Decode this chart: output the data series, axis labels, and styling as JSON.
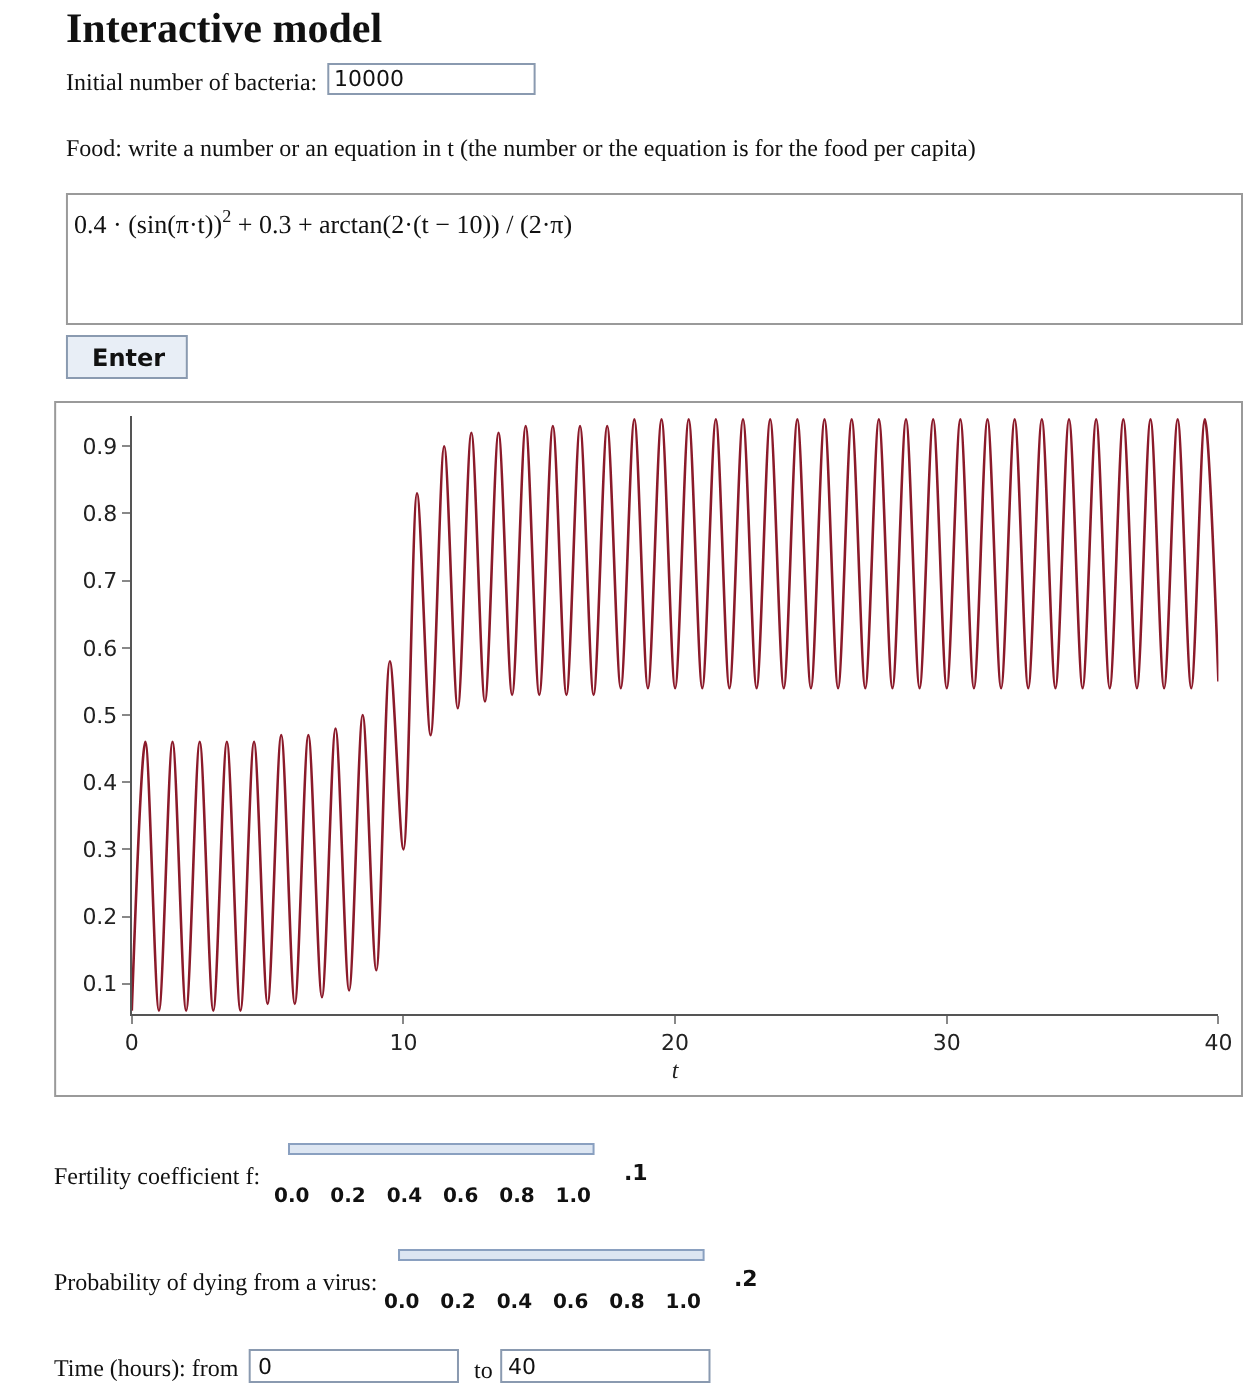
{
  "chart_data": {
    "type": "line",
    "title": "Interactive model",
    "xlabel": "t",
    "x": [
      0,
      0.5,
      1,
      1.5,
      2,
      2.5,
      3,
      3.5,
      4,
      4.5,
      5,
      5.5,
      6,
      6.5,
      7,
      7.5,
      8,
      8.5,
      9,
      9.5,
      10,
      10.5,
      11,
      11.5,
      12,
      12.5,
      13,
      13.5,
      14,
      14.5,
      15,
      15.5,
      16,
      16.5,
      17,
      17.5,
      18,
      18.5,
      19,
      19.5,
      20,
      20.5,
      21,
      21.5,
      22,
      22.5,
      23,
      23.5,
      24,
      24.5,
      25,
      25.5,
      26,
      26.5,
      27,
      27.5,
      28,
      28.5,
      29,
      29.5,
      30,
      30.5,
      31,
      31.5,
      32,
      32.5,
      33,
      33.5,
      34,
      34.5,
      35,
      35.5,
      36,
      36.5,
      37,
      37.5,
      38,
      38.5,
      39,
      39.5,
      40
    ],
    "series": [
      {
        "color": "#8b1a2a",
        "values": [
          0.06,
          0.46,
          0.06,
          0.46,
          0.06,
          0.46,
          0.06,
          0.46,
          0.06,
          0.46,
          0.07,
          0.47,
          0.07,
          0.47,
          0.08,
          0.48,
          0.09,
          0.5,
          0.12,
          0.58,
          0.3,
          0.83,
          0.47,
          0.9,
          0.51,
          0.92,
          0.52,
          0.92,
          0.53,
          0.93,
          0.53,
          0.93,
          0.53,
          0.93,
          0.53,
          0.93,
          0.54,
          0.94,
          0.54,
          0.94,
          0.54,
          0.94,
          0.54,
          0.94,
          0.54,
          0.94,
          0.54,
          0.94,
          0.54,
          0.94,
          0.54,
          0.94,
          0.54,
          0.94,
          0.54,
          0.94,
          0.54,
          0.94,
          0.54,
          0.94,
          0.54,
          0.94,
          0.54,
          0.94,
          0.54,
          0.94,
          0.54,
          0.94,
          0.54,
          0.94,
          0.54,
          0.94,
          0.54,
          0.94,
          0.54,
          0.94,
          0.54,
          0.94,
          0.54,
          0.94,
          0.55
        ]
      }
    ],
    "xlim": [
      0,
      40
    ],
    "xticks": [
      0,
      10,
      20,
      30,
      40
    ],
    "ylim": [
      0.055,
      0.945
    ],
    "yticks": [
      0.1,
      0.2,
      0.3,
      0.4,
      0.5,
      0.6,
      0.7,
      0.8,
      0.9
    ],
    "marker": "none",
    "line_style": "solid",
    "annotations": [
      "Initial number of bacteria:",
      "10000",
      "Food: write a number or an equation in t (the number or the equation is for the food per capita)",
      "0.4 · (sin(π·t))$^{2}$ + 0.3 + arctan(2·(t − 10)) / (2·π)",
      "Enter",
      "Fertility coefficient f:",
      "0.0   0.2   0.4   0.6   0.8   1.0",
      ".1",
      "Probability of dying from a virus:",
      "0.0   0.2   0.4   0.6   0.8   1.0",
      ".2",
      "Time (hours): from",
      "0",
      "to",
      "40"
    ]
  }
}
